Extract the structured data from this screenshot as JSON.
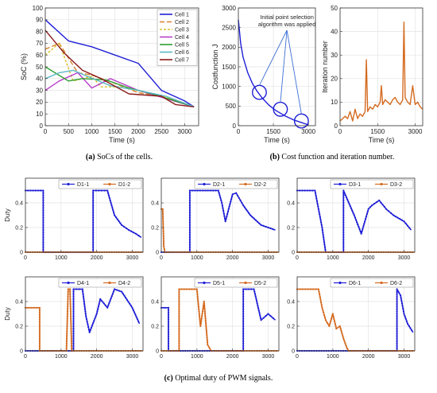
{
  "captions": {
    "a_label": "(a)",
    "a_text": " SoCs of the cells.",
    "b_label": "(b)",
    "b_text": " Cost function and iteration number.",
    "c_label": "(c)",
    "c_text": " Optimal duty of PWM signals."
  },
  "chart_data": [
    {
      "id": "soc",
      "type": "line",
      "xlabel": "Time (s)",
      "ylabel": "SoC (%)",
      "xlim": [
        0,
        3300
      ],
      "ylim": [
        0,
        100
      ],
      "xticks": [
        0,
        500,
        1000,
        1500,
        2000,
        2500,
        3000
      ],
      "yticks": [
        0,
        10,
        20,
        30,
        40,
        50,
        60,
        70,
        80,
        90,
        100
      ],
      "grid": true,
      "legend_position": "top-right",
      "series": [
        {
          "name": "Cell 1",
          "color": "#1f1fd6",
          "dash": "",
          "x": [
            0,
            500,
            1000,
            1500,
            2000,
            2500,
            3000,
            3200
          ],
          "y": [
            90,
            72,
            67,
            60,
            53,
            30,
            21,
            16
          ]
        },
        {
          "name": "Cell 2",
          "color": "#d9822b",
          "dash": "6,3",
          "x": [
            0,
            300,
            700,
            1000,
            1500,
            2000,
            2500,
            3200
          ],
          "y": [
            65,
            70,
            45,
            43,
            36,
            28,
            25,
            16
          ]
        },
        {
          "name": "Cell 3",
          "color": "#d8c12a",
          "dash": "3,2",
          "x": [
            0,
            300,
            600,
            1000,
            1200,
            1600,
            2200,
            2800,
            3200
          ],
          "y": [
            60,
            70,
            38,
            42,
            33,
            33,
            28,
            22,
            16
          ]
        },
        {
          "name": "Cell 4",
          "color": "#b83fc9",
          "dash": "",
          "x": [
            0,
            300,
            700,
            1000,
            1400,
            2000,
            2600,
            3200
          ],
          "y": [
            30,
            38,
            45,
            32,
            40,
            30,
            23,
            16
          ]
        },
        {
          "name": "Cell 5",
          "color": "#2e9e2e",
          "dash": "",
          "x": [
            0,
            500,
            800,
            1300,
            1800,
            2400,
            3200
          ],
          "y": [
            50,
            38,
            40,
            39,
            32,
            26,
            16
          ]
        },
        {
          "name": "Cell 6",
          "color": "#5db8c6",
          "dash": "",
          "x": [
            0,
            300,
            600,
            900,
            1400,
            2000,
            2600,
            3200
          ],
          "y": [
            40,
            45,
            47,
            42,
            34,
            30,
            25,
            16
          ]
        },
        {
          "name": "Cell 7",
          "color": "#8b1a1a",
          "dash": "",
          "x": [
            0,
            400,
            800,
            1200,
            1800,
            2500,
            2800,
            3200
          ],
          "y": [
            81,
            62,
            47,
            40,
            27,
            25,
            18,
            16
          ]
        }
      ]
    },
    {
      "id": "cost",
      "type": "line",
      "xlabel": "Time (s)",
      "ylabel": "Costfunction J",
      "xlim": [
        0,
        3300
      ],
      "ylim": [
        0,
        3000
      ],
      "xticks": [
        0,
        1500,
        3000
      ],
      "yticks": [
        0,
        500,
        1000,
        1500,
        2000,
        2500,
        3000
      ],
      "grid": true,
      "annotation": "Initial point selection\nalgorithm was applied",
      "series": [
        {
          "name": "",
          "color": "#1f1fd6",
          "x": [
            0,
            100,
            200,
            400,
            600,
            800,
            1000,
            1300,
            1600,
            2000,
            2400,
            2800,
            3000
          ],
          "y": [
            2700,
            2100,
            1750,
            1350,
            1080,
            880,
            720,
            530,
            390,
            250,
            140,
            60,
            20
          ]
        }
      ],
      "circles": [
        {
          "x": 900,
          "y": 850
        },
        {
          "x": 1800,
          "y": 420
        },
        {
          "x": 2700,
          "y": 120
        }
      ]
    },
    {
      "id": "iter",
      "type": "line",
      "xlabel": "Time (s)",
      "ylabel": "Iteration number",
      "xlim": [
        0,
        3300
      ],
      "ylim": [
        0,
        50
      ],
      "xticks": [
        0,
        1500,
        3000
      ],
      "yticks": [
        0,
        10,
        20,
        30,
        40,
        50
      ],
      "grid": true,
      "series": [
        {
          "name": "",
          "color": "#d46a1f",
          "x": [
            0,
            200,
            300,
            400,
            500,
            600,
            700,
            800,
            900,
            1000,
            1050,
            1100,
            1200,
            1300,
            1400,
            1500,
            1600,
            1650,
            1700,
            1800,
            1900,
            2000,
            2100,
            2200,
            2300,
            2400,
            2500,
            2550,
            2600,
            2700,
            2800,
            2900,
            3000,
            3100,
            3200,
            3300
          ],
          "y": [
            2,
            4,
            3,
            6,
            2,
            7,
            3,
            5,
            4,
            6,
            28,
            6,
            8,
            7,
            9,
            8,
            10,
            17,
            9,
            11,
            10,
            9,
            11,
            12,
            10,
            9,
            11,
            44,
            12,
            10,
            9,
            17,
            9,
            10,
            8,
            7
          ]
        }
      ]
    },
    {
      "id": "d1",
      "type": "line",
      "ylabel": "Duty",
      "xlim": [
        0,
        3300
      ],
      "ylim": [
        0,
        0.6
      ],
      "xticks": [
        0,
        1000,
        2000,
        3000
      ],
      "yticks": [
        0,
        0.2,
        0.4
      ],
      "grid": true,
      "legend_position": "top-right",
      "series": [
        {
          "name": "D1-1",
          "color": "#1f1fd6",
          "x": [
            0,
            500,
            500,
            1900,
            1900,
            2300,
            2500,
            2700,
            2900,
            3100,
            3250
          ],
          "y": [
            0.5,
            0.5,
            0,
            0,
            0.5,
            0.5,
            0.3,
            0.22,
            0.18,
            0.15,
            0.12
          ]
        },
        {
          "name": "D1-2",
          "color": "#d46a1f",
          "x": [
            0,
            3300
          ],
          "y": [
            0,
            0
          ]
        }
      ]
    },
    {
      "id": "d2",
      "type": "line",
      "xlim": [
        0,
        3300
      ],
      "ylim": [
        0,
        0.6
      ],
      "xticks": [
        0,
        1000,
        2000,
        3000
      ],
      "yticks": [
        0,
        0.2,
        0.4
      ],
      "grid": true,
      "legend_position": "top-right",
      "series": [
        {
          "name": "D2-1",
          "color": "#1f1fd6",
          "x": [
            0,
            800,
            800,
            1600,
            1700,
            1800,
            2000,
            2100,
            2300,
            2500,
            2800,
            3200
          ],
          "y": [
            0,
            0,
            0.5,
            0.5,
            0.4,
            0.25,
            0.47,
            0.48,
            0.38,
            0.3,
            0.22,
            0.18
          ]
        },
        {
          "name": "D2-2",
          "color": "#d46a1f",
          "x": [
            0,
            40,
            70,
            100,
            3300
          ],
          "y": [
            0.35,
            0.35,
            0.05,
            0,
            0
          ]
        }
      ]
    },
    {
      "id": "d3",
      "type": "line",
      "xlim": [
        0,
        3300
      ],
      "ylim": [
        0,
        0.6
      ],
      "xticks": [
        0,
        1000,
        2000,
        3000
      ],
      "yticks": [
        0,
        0.2,
        0.4
      ],
      "grid": true,
      "legend_position": "top-right",
      "series": [
        {
          "name": "D3-1",
          "color": "#1f1fd6",
          "x": [
            0,
            500,
            600,
            700,
            800,
            1300,
            1300,
            1600,
            1800,
            2000,
            2100,
            2300,
            2500,
            2700,
            3000,
            3200
          ],
          "y": [
            0.5,
            0.5,
            0.35,
            0.2,
            0,
            0,
            0.5,
            0.3,
            0.15,
            0.35,
            0.38,
            0.42,
            0.35,
            0.3,
            0.25,
            0.18
          ]
        },
        {
          "name": "D3-2",
          "color": "#d46a1f",
          "x": [
            0,
            3300
          ],
          "y": [
            0,
            0
          ]
        }
      ]
    },
    {
      "id": "d4",
      "type": "line",
      "ylabel": "Duty",
      "xlim": [
        0,
        3300
      ],
      "ylim": [
        0,
        0.6
      ],
      "xticks": [
        0,
        1000,
        2000,
        3000
      ],
      "yticks": [
        0,
        0.2,
        0.4
      ],
      "grid": true,
      "legend_position": "top-right",
      "series": [
        {
          "name": "D4-1",
          "color": "#1f1fd6",
          "x": [
            0,
            1350,
            1350,
            1600,
            1700,
            1800,
            2000,
            2100,
            2300,
            2500,
            2700,
            3000,
            3200
          ],
          "y": [
            0,
            0,
            0.5,
            0.5,
            0.28,
            0.15,
            0.3,
            0.42,
            0.35,
            0.5,
            0.48,
            0.35,
            0.22
          ]
        },
        {
          "name": "D4-2",
          "color": "#d46a1f",
          "x": [
            0,
            400,
            400,
            1150,
            1200,
            1250,
            1300,
            3300
          ],
          "y": [
            0.35,
            0.35,
            0,
            0,
            0.5,
            0.5,
            0,
            0
          ]
        }
      ]
    },
    {
      "id": "d5",
      "type": "line",
      "xlim": [
        0,
        3300
      ],
      "ylim": [
        0,
        0.6
      ],
      "xticks": [
        0,
        1000,
        2000,
        3000
      ],
      "yticks": [
        0,
        0.2,
        0.4
      ],
      "grid": true,
      "legend_position": "top-right",
      "series": [
        {
          "name": "D5-1",
          "color": "#1f1fd6",
          "x": [
            0,
            200,
            200,
            2300,
            2300,
            2600,
            2800,
            3000,
            3200
          ],
          "y": [
            0.35,
            0.35,
            0,
            0,
            0.5,
            0.5,
            0.25,
            0.3,
            0.25
          ]
        },
        {
          "name": "D5-2",
          "color": "#d46a1f",
          "x": [
            0,
            500,
            500,
            1000,
            1100,
            1200,
            1300,
            1400,
            1500,
            3300
          ],
          "y": [
            0,
            0,
            0.5,
            0.5,
            0.2,
            0.4,
            0.05,
            0,
            0,
            0
          ]
        }
      ]
    },
    {
      "id": "d6",
      "type": "line",
      "xlim": [
        0,
        3300
      ],
      "ylim": [
        0,
        0.6
      ],
      "xticks": [
        0,
        1000,
        2000,
        3000
      ],
      "yticks": [
        0,
        0.2,
        0.4
      ],
      "grid": true,
      "legend_position": "top-right",
      "series": [
        {
          "name": "D6-1",
          "color": "#1f1fd6",
          "x": [
            0,
            2800,
            2800,
            2900,
            3000,
            3100,
            3250
          ],
          "y": [
            0,
            0,
            0.5,
            0.45,
            0.3,
            0.22,
            0.15
          ]
        },
        {
          "name": "D6-2",
          "color": "#d46a1f",
          "x": [
            0,
            600,
            700,
            800,
            900,
            1000,
            1100,
            1200,
            1300,
            1400,
            1450,
            3300
          ],
          "y": [
            0.5,
            0.5,
            0.35,
            0.25,
            0.2,
            0.3,
            0.18,
            0.2,
            0.1,
            0.02,
            0,
            0
          ]
        }
      ]
    }
  ]
}
